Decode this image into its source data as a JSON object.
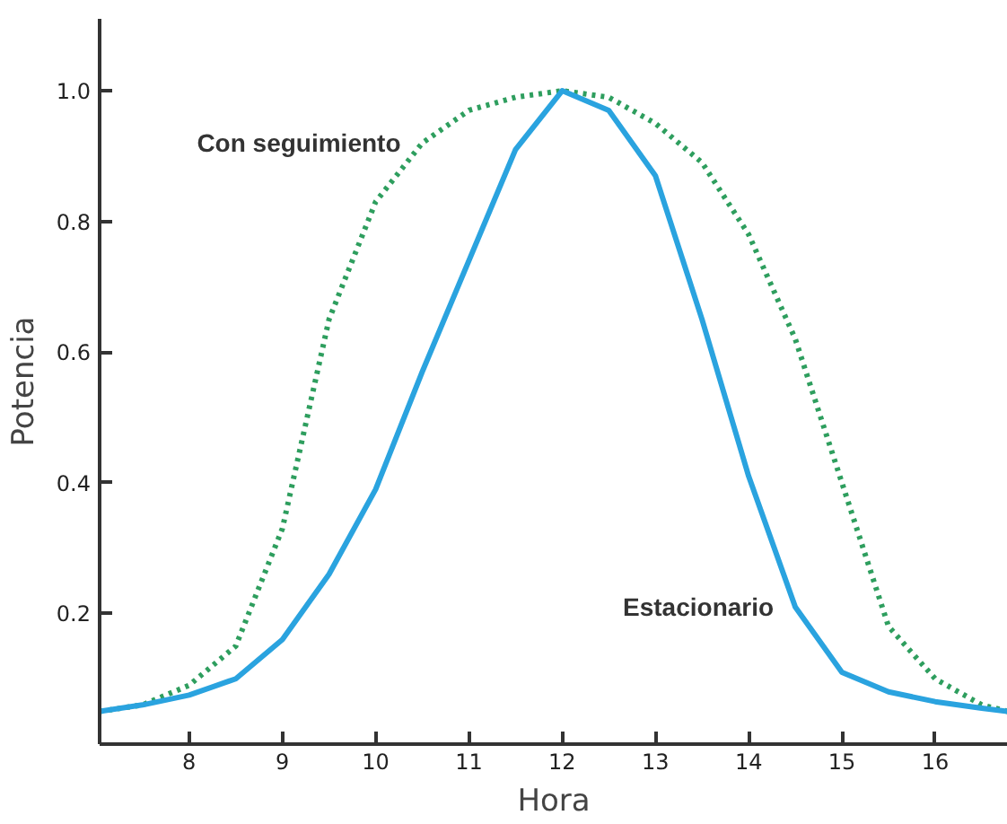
{
  "chart_data": {
    "type": "line",
    "xlabel": "Hora",
    "ylabel": "Potencia",
    "x": [
      7.04,
      7.5,
      8,
      8.5,
      9,
      9.5,
      10,
      10.5,
      11,
      11.5,
      12,
      12.5,
      13,
      13.5,
      14,
      14.5,
      15,
      15.5,
      16,
      16.5,
      16.78
    ],
    "series": [
      {
        "name": "Con seguimiento",
        "color": "#2e9e5e",
        "line_style": "dotted",
        "values": [
          0.05,
          0.06,
          0.09,
          0.15,
          0.33,
          0.65,
          0.83,
          0.92,
          0.97,
          0.99,
          1.0,
          0.99,
          0.95,
          0.89,
          0.78,
          0.62,
          0.4,
          0.18,
          0.1,
          0.06,
          0.05
        ]
      },
      {
        "name": "Estacionario",
        "color": "#2aa3df",
        "line_style": "solid",
        "values": [
          0.05,
          0.06,
          0.075,
          0.1,
          0.16,
          0.26,
          0.39,
          0.57,
          0.74,
          0.91,
          1.0,
          0.97,
          0.87,
          0.65,
          0.41,
          0.21,
          0.11,
          0.08,
          0.065,
          0.055,
          0.05
        ]
      }
    ],
    "xlim": [
      7.04,
      16.78
    ],
    "ylim": [
      0,
      1.11
    ],
    "xticks": [
      8,
      9,
      10,
      11,
      12,
      13,
      14,
      15,
      16
    ],
    "yticks": [
      {
        "value": 0.2,
        "label": "0.2"
      },
      {
        "value": 0.4,
        "label": "0.4"
      },
      {
        "value": 0.6,
        "label": "0.6"
      },
      {
        "value": 0.8,
        "label": "0.8"
      },
      {
        "value": 1.0,
        "label": "1.0"
      }
    ],
    "grid": false,
    "marker": "none"
  }
}
